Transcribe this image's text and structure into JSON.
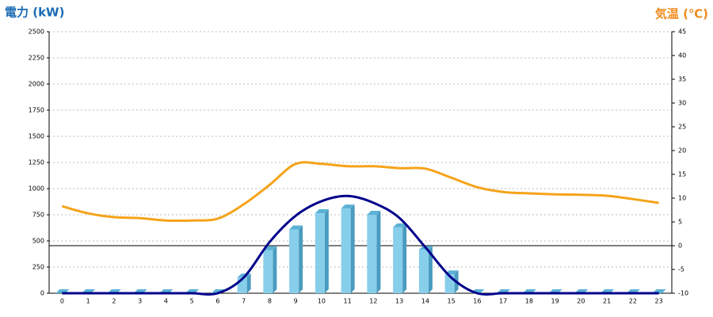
{
  "chart_data": {
    "type": "bar",
    "y_title": "電力 (kW)",
    "y2_title": "気温 (℃)",
    "categories": [
      "0",
      "1",
      "2",
      "3",
      "4",
      "5",
      "6",
      "7",
      "8",
      "9",
      "10",
      "11",
      "12",
      "13",
      "14",
      "15",
      "16",
      "17",
      "18",
      "19",
      "20",
      "21",
      "22",
      "23"
    ],
    "series": [
      {
        "type": "bar",
        "color": "#87ceeb",
        "values": [
          0,
          0,
          0,
          0,
          0,
          0,
          0,
          150,
          410,
          610,
          765,
          810,
          750,
          630,
          415,
          180,
          0,
          0,
          0,
          0,
          0,
          0,
          0,
          0
        ]
      },
      {
        "type": "line",
        "color": "#00008b",
        "values": [
          0,
          0,
          0,
          0,
          0,
          0,
          0,
          150,
          490,
          740,
          880,
          930,
          865,
          720,
          440,
          150,
          0,
          0,
          0,
          0,
          0,
          0,
          0,
          0
        ]
      },
      {
        "type": "line",
        "color": "#f5a31a",
        "axis": "y2",
        "values": [
          8.3,
          6.8,
          6,
          5.8,
          5.3,
          5.3,
          5.7,
          8.7,
          12.8,
          17.2,
          17.2,
          16.7,
          16.7,
          16.3,
          16.2,
          14.3,
          12.3,
          11.3,
          11,
          10.8,
          10.7,
          10.5,
          9.8,
          9
        ]
      }
    ],
    "ylim": [
      0,
      2500
    ],
    "yticks": [
      0,
      250,
      500,
      750,
      1000,
      1250,
      1500,
      1750,
      2000,
      2250,
      2500
    ],
    "y2lim": [
      -10,
      45
    ],
    "y2ticks": [
      -10,
      -5,
      0,
      5,
      10,
      15,
      20,
      25,
      30,
      35,
      40,
      45
    ],
    "grid": true
  }
}
